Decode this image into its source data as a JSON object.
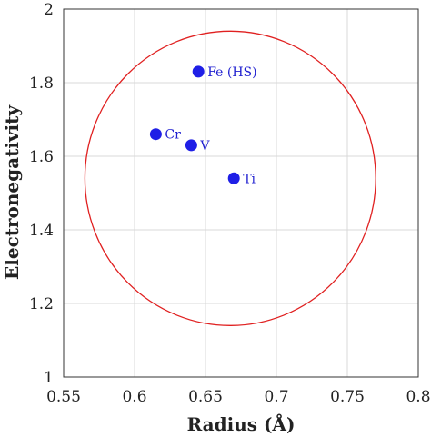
{
  "chart_data": {
    "type": "scatter",
    "xlabel": "Radius (Å)",
    "ylabel": "Electronegativity",
    "xlim": [
      0.55,
      0.8
    ],
    "ylim": [
      1,
      2
    ],
    "x_ticks": [
      0.55,
      0.6,
      0.65,
      0.7,
      0.75,
      0.8
    ],
    "x_tick_labels": [
      "0.55",
      "0.6",
      "0.65",
      "0.7",
      "0.75",
      "0.8"
    ],
    "y_ticks": [
      1,
      1.2,
      1.4,
      1.6,
      1.8,
      2
    ],
    "y_tick_labels": [
      "1",
      "1.2",
      "1.4",
      "1.6",
      "1.8",
      "2"
    ],
    "grid": true,
    "colors": {
      "points": "#1f1fe6",
      "labels": "#1f1fd0",
      "circle": "#e02020"
    },
    "points": [
      {
        "label": "Fe (HS)",
        "x": 0.645,
        "y": 1.83
      },
      {
        "label": "Cr",
        "x": 0.615,
        "y": 1.66
      },
      {
        "label": "V",
        "x": 0.64,
        "y": 1.63
      },
      {
        "label": "Ti",
        "x": 0.67,
        "y": 1.54
      }
    ],
    "circle": {
      "center_x": 0.6675,
      "center_y": 1.54,
      "radius_x": 0.1025,
      "radius_y": 0.4
    }
  }
}
